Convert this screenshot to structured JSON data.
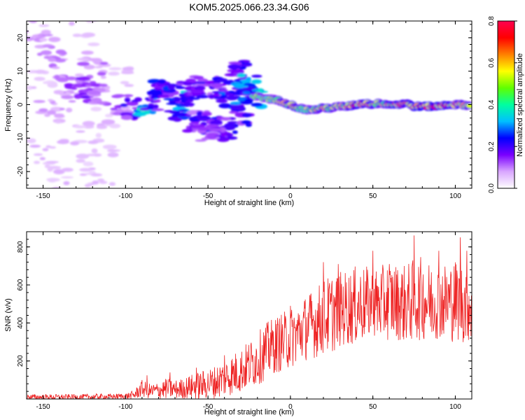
{
  "title": "KOM5.2025.066.23.34.G06",
  "chart_data": [
    {
      "type": "heatmap",
      "xlabel": "Height of straight line (km)",
      "ylabel": "Frequency (Hz)",
      "xlim": [
        -160,
        110
      ],
      "ylim": [
        -25,
        25
      ],
      "x_ticks": [
        -150,
        -100,
        -50,
        0,
        50,
        100
      ],
      "y_ticks": [
        20,
        10,
        0,
        -10,
        -20
      ],
      "grid": false,
      "colorbar": {
        "label": "Normalized spectral amplitude",
        "range": [
          0.0,
          0.8
        ],
        "ticks": [
          "0.0",
          "0.2",
          "0.4",
          "0.6",
          "0.8"
        ],
        "colors": [
          "#ffffff",
          "#d9a6ff",
          "#7a00ff",
          "#0000ff",
          "#00c0ff",
          "#00ffa0",
          "#60ff00",
          "#ffff00",
          "#ff8000",
          "#ff0000",
          "#ff0050"
        ]
      },
      "blobs": [
        {
          "x": -155,
          "y": 22,
          "a": 0.08
        },
        {
          "x": -148,
          "y": 18,
          "a": 0.1
        },
        {
          "x": -140,
          "y": 12,
          "a": 0.1
        },
        {
          "x": -152,
          "y": 8,
          "a": 0.06
        },
        {
          "x": -135,
          "y": 5,
          "a": 0.1
        },
        {
          "x": -145,
          "y": -3,
          "a": 0.08
        },
        {
          "x": -130,
          "y": -8,
          "a": 0.06
        },
        {
          "x": -150,
          "y": -14,
          "a": 0.07
        },
        {
          "x": -125,
          "y": -18,
          "a": 0.06
        },
        {
          "x": -140,
          "y": -22,
          "a": 0.07
        },
        {
          "x": -118,
          "y": 15,
          "a": 0.07
        },
        {
          "x": -110,
          "y": -5,
          "a": 0.06
        },
        {
          "x": -128,
          "y": 24,
          "a": 0.06
        },
        {
          "x": -105,
          "y": 8,
          "a": 0.06
        },
        {
          "x": -115,
          "y": -24,
          "a": 0.06
        },
        {
          "x": -138,
          "y": 1,
          "a": 0.09
        },
        {
          "x": -120,
          "y": 10,
          "a": 0.1
        },
        {
          "x": -112,
          "y": -12,
          "a": 0.06
        },
        {
          "x": -130,
          "y": 5,
          "a": 0.15
        },
        {
          "x": -123,
          "y": 4,
          "a": 0.15
        },
        {
          "x": -115,
          "y": 3,
          "a": 0.12
        },
        {
          "x": -103,
          "y": 0,
          "a": 0.12
        },
        {
          "x": -96,
          "y": -1,
          "a": 0.18
        },
        {
          "x": -88,
          "y": 0,
          "a": 0.32
        },
        {
          "x": -84,
          "y": 1,
          "a": 0.18
        },
        {
          "x": -81,
          "y": 5,
          "a": 0.22
        },
        {
          "x": -76,
          "y": 4,
          "a": 0.2
        },
        {
          "x": -70,
          "y": 3,
          "a": 0.22
        },
        {
          "x": -65,
          "y": 1,
          "a": 0.3
        },
        {
          "x": -62,
          "y": 4,
          "a": 0.2
        },
        {
          "x": -58,
          "y": 6,
          "a": 0.16
        },
        {
          "x": -68,
          "y": -2,
          "a": 0.24
        },
        {
          "x": -60,
          "y": -5,
          "a": 0.16
        },
        {
          "x": -54,
          "y": -5,
          "a": 0.2
        },
        {
          "x": -48,
          "y": -6,
          "a": 0.22
        },
        {
          "x": -52,
          "y": 5,
          "a": 0.18
        },
        {
          "x": -46,
          "y": 4,
          "a": 0.17
        },
        {
          "x": -40,
          "y": 5,
          "a": 0.2
        },
        {
          "x": -36,
          "y": 2,
          "a": 0.26
        },
        {
          "x": -33,
          "y": 8,
          "a": 0.18
        },
        {
          "x": -30,
          "y": 10,
          "a": 0.2
        },
        {
          "x": -28,
          "y": 4,
          "a": 0.28
        },
        {
          "x": -25,
          "y": 6,
          "a": 0.3
        },
        {
          "x": -22,
          "y": 2,
          "a": 0.3
        },
        {
          "x": -30,
          "y": -4,
          "a": 0.2
        },
        {
          "x": -38,
          "y": -7,
          "a": 0.2
        },
        {
          "x": -44,
          "y": -8,
          "a": 0.18
        },
        {
          "x": -50,
          "y": -9,
          "a": 0.15
        }
      ],
      "ridge": {
        "x": [
          -22,
          -15,
          -10,
          -5,
          0,
          5,
          10,
          15,
          20,
          25,
          30,
          35,
          40,
          45,
          50,
          55,
          60,
          65,
          70,
          75,
          80,
          85,
          90,
          95,
          100,
          105,
          110
        ],
        "y": [
          2.5,
          2,
          1.5,
          1,
          0,
          -1,
          -1.5,
          -1.5,
          -1,
          -1,
          -0.5,
          -0.5,
          0,
          0.5,
          0,
          0.5,
          0,
          0,
          0.5,
          -0.5,
          -0.5,
          -0.5,
          -0.5,
          0,
          0,
          0,
          -0.5
        ],
        "amplitude": [
          0.45,
          0.42,
          0.45,
          0.5,
          0.55,
          0.5,
          0.45,
          0.5,
          0.55,
          0.5,
          0.5,
          0.55,
          0.6,
          0.6,
          0.55,
          0.5,
          0.55,
          0.6,
          0.55,
          0.6,
          0.65,
          0.6,
          0.65,
          0.6,
          0.55,
          0.55,
          0.5
        ]
      }
    },
    {
      "type": "line",
      "xlabel": "Height of straight line (km)",
      "ylabel": "SNR (v/v)",
      "xlim": [
        -160,
        110
      ],
      "ylim": [
        0,
        880
      ],
      "x_ticks": [
        -150,
        -100,
        -50,
        0,
        50,
        100
      ],
      "y_ticks": [
        200,
        400,
        600,
        800
      ],
      "grid": false,
      "series": [
        {
          "color": "#ee2222",
          "envelope": {
            "x": [
              -160,
              -150,
              -140,
              -130,
              -120,
              -110,
              -100,
              -95,
              -90,
              -85,
              -80,
              -75,
              -70,
              -65,
              -60,
              -55,
              -50,
              -45,
              -40,
              -35,
              -30,
              -25,
              -20,
              -15,
              -10,
              -5,
              0,
              5,
              10,
              15,
              20,
              25,
              30,
              35,
              40,
              45,
              50,
              55,
              60,
              65,
              70,
              75,
              80,
              85,
              90,
              95,
              100,
              105,
              110
            ],
            "mean": [
              10,
              10,
              10,
              10,
              12,
              12,
              15,
              20,
              55,
              40,
              45,
              55,
              50,
              55,
              65,
              70,
              80,
              90,
              110,
              130,
              150,
              180,
              210,
              250,
              280,
              300,
              320,
              350,
              380,
              400,
              430,
              450,
              470,
              480,
              490,
              500,
              500,
              500,
              520,
              510,
              500,
              520,
              530,
              510,
              520,
              510,
              520,
              510,
              500
            ],
            "amp": [
              15,
              15,
              15,
              15,
              15,
              15,
              15,
              25,
              45,
              40,
              45,
              55,
              50,
              55,
              65,
              75,
              80,
              90,
              100,
              110,
              120,
              130,
              140,
              150,
              150,
              155,
              160,
              165,
              175,
              185,
              200,
              210,
              200,
              200,
              210,
              200,
              190,
              200,
              210,
              200,
              210,
              220,
              220,
              210,
              200,
              210,
              220,
              220,
              200
            ],
            "peaks": [
              {
                "x": -87,
                "y": 125
              },
              {
                "x": -73,
                "y": 140
              },
              {
                "x": -57,
                "y": 165
              },
              {
                "x": -40,
                "y": 230
              },
              {
                "x": -12,
                "y": 350
              },
              {
                "x": 0,
                "y": 490
              },
              {
                "x": 20,
                "y": 720
              },
              {
                "x": 29,
                "y": 710
              },
              {
                "x": 50,
                "y": 780
              },
              {
                "x": 60,
                "y": 710
              },
              {
                "x": 75,
                "y": 860
              },
              {
                "x": 90,
                "y": 780
              },
              {
                "x": 103,
                "y": 850
              },
              {
                "x": 107,
                "y": 780
              }
            ]
          }
        }
      ]
    }
  ]
}
